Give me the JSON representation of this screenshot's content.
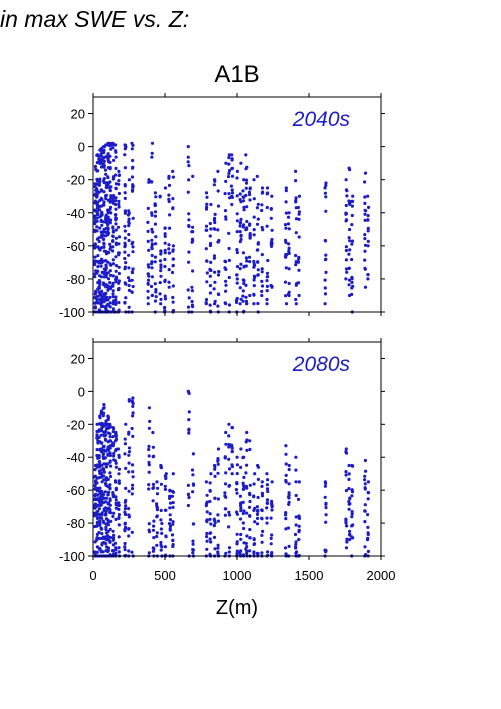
{
  "page": {
    "title": "in max SWE vs. Z:"
  },
  "colors": {
    "points": "#1c1cc8",
    "annotation": "#1c1cc8",
    "axis": "#000000"
  },
  "chart_data": [
    {
      "type": "scatter",
      "title": "A1B",
      "annotation": "2040s",
      "xlim": [
        0,
        2000
      ],
      "ylim": [
        -100,
        30
      ],
      "xticks": [
        0,
        500,
        1000,
        1500,
        2000
      ],
      "yticks": [
        20,
        0,
        -20,
        -40,
        -60,
        -80,
        -100
      ],
      "grid": false,
      "columns": [
        {
          "x": 15,
          "ymin": -100,
          "ymax": -12,
          "n": 40
        },
        {
          "x": 30,
          "ymin": -100,
          "ymax": -5,
          "n": 45
        },
        {
          "x": 45,
          "ymin": -100,
          "ymax": -2,
          "n": 45
        },
        {
          "x": 60,
          "ymin": -100,
          "ymax": -1,
          "n": 45
        },
        {
          "x": 75,
          "ymin": -100,
          "ymax": 0,
          "n": 45
        },
        {
          "x": 90,
          "ymin": -100,
          "ymax": 1,
          "n": 45
        },
        {
          "x": 105,
          "ymin": -100,
          "ymax": 2,
          "n": 45
        },
        {
          "x": 120,
          "ymin": -100,
          "ymax": 2,
          "n": 40
        },
        {
          "x": 140,
          "ymin": -100,
          "ymax": 2,
          "n": 40
        },
        {
          "x": 160,
          "ymin": -100,
          "ymax": 1,
          "n": 35
        },
        {
          "x": 180,
          "ymin": -100,
          "ymax": -15,
          "n": 25
        },
        {
          "x": 225,
          "ymin": -100,
          "ymax": 1,
          "n": 30
        },
        {
          "x": 250,
          "ymin": -100,
          "ymax": -20,
          "n": 18
        },
        {
          "x": 275,
          "ymin": -100,
          "ymax": 2,
          "n": 25
        },
        {
          "x": 385,
          "ymin": -95,
          "ymax": -20,
          "n": 18
        },
        {
          "x": 410,
          "ymin": -90,
          "ymax": 2,
          "n": 22
        },
        {
          "x": 435,
          "ymin": -100,
          "ymax": -28,
          "n": 18
        },
        {
          "x": 470,
          "ymin": -95,
          "ymax": -30,
          "n": 14
        },
        {
          "x": 500,
          "ymin": -100,
          "ymax": -25,
          "n": 18
        },
        {
          "x": 530,
          "ymin": -85,
          "ymax": -18,
          "n": 15
        },
        {
          "x": 555,
          "ymin": -100,
          "ymax": -15,
          "n": 18
        },
        {
          "x": 665,
          "ymin": -100,
          "ymax": 0,
          "n": 16
        },
        {
          "x": 690,
          "ymin": -100,
          "ymax": -18,
          "n": 14
        },
        {
          "x": 790,
          "ymin": -95,
          "ymax": -28,
          "n": 16
        },
        {
          "x": 815,
          "ymin": -100,
          "ymax": -35,
          "n": 16
        },
        {
          "x": 845,
          "ymin": -95,
          "ymax": -20,
          "n": 16
        },
        {
          "x": 870,
          "ymin": -100,
          "ymax": -15,
          "n": 14
        },
        {
          "x": 920,
          "ymin": -95,
          "ymax": -10,
          "n": 15
        },
        {
          "x": 945,
          "ymin": -100,
          "ymax": -5,
          "n": 14
        },
        {
          "x": 965,
          "ymin": -35,
          "ymax": -5,
          "n": 12
        },
        {
          "x": 1000,
          "ymin": -100,
          "ymax": -15,
          "n": 18
        },
        {
          "x": 1025,
          "ymin": -95,
          "ymax": -10,
          "n": 18
        },
        {
          "x": 1045,
          "ymin": -100,
          "ymax": -20,
          "n": 20
        },
        {
          "x": 1065,
          "ymin": -95,
          "ymax": -5,
          "n": 20
        },
        {
          "x": 1090,
          "ymin": -90,
          "ymax": -25,
          "n": 15
        },
        {
          "x": 1120,
          "ymin": -95,
          "ymax": -20,
          "n": 16
        },
        {
          "x": 1145,
          "ymin": -100,
          "ymax": -18,
          "n": 16
        },
        {
          "x": 1175,
          "ymin": -90,
          "ymax": -25,
          "n": 14
        },
        {
          "x": 1210,
          "ymin": -95,
          "ymax": -25,
          "n": 14
        },
        {
          "x": 1240,
          "ymin": -85,
          "ymax": -30,
          "n": 14
        },
        {
          "x": 1340,
          "ymin": -95,
          "ymax": -25,
          "n": 16
        },
        {
          "x": 1360,
          "ymin": -90,
          "ymax": -40,
          "n": 14
        },
        {
          "x": 1410,
          "ymin": -95,
          "ymax": -15,
          "n": 16
        },
        {
          "x": 1430,
          "ymin": -90,
          "ymax": -30,
          "n": 12
        },
        {
          "x": 1615,
          "ymin": -95,
          "ymax": -22,
          "n": 16
        },
        {
          "x": 1760,
          "ymin": -80,
          "ymax": -20,
          "n": 16
        },
        {
          "x": 1780,
          "ymin": -90,
          "ymax": -13,
          "n": 16
        },
        {
          "x": 1800,
          "ymin": -100,
          "ymax": -30,
          "n": 16
        },
        {
          "x": 1890,
          "ymin": -85,
          "ymax": -16,
          "n": 16
        },
        {
          "x": 1910,
          "ymin": -80,
          "ymax": -30,
          "n": 12
        }
      ]
    },
    {
      "type": "scatter",
      "title": "",
      "annotation": "2080s",
      "xlim": [
        0,
        2000
      ],
      "ylim": [
        -100,
        30
      ],
      "xticks": [
        0,
        500,
        1000,
        1500,
        2000
      ],
      "yticks": [
        20,
        0,
        -20,
        -40,
        -60,
        -80,
        -100
      ],
      "grid": false,
      "columns": [
        {
          "x": 15,
          "ymin": -100,
          "ymax": -45,
          "n": 30
        },
        {
          "x": 30,
          "ymin": -100,
          "ymax": -20,
          "n": 40
        },
        {
          "x": 45,
          "ymin": -100,
          "ymax": -15,
          "n": 40
        },
        {
          "x": 60,
          "ymin": -100,
          "ymax": -12,
          "n": 40
        },
        {
          "x": 75,
          "ymin": -100,
          "ymax": -8,
          "n": 40
        },
        {
          "x": 90,
          "ymin": -100,
          "ymax": -18,
          "n": 40
        },
        {
          "x": 105,
          "ymin": -100,
          "ymax": -15,
          "n": 40
        },
        {
          "x": 120,
          "ymin": -100,
          "ymax": -20,
          "n": 35
        },
        {
          "x": 140,
          "ymin": -100,
          "ymax": -22,
          "n": 32
        },
        {
          "x": 160,
          "ymin": -100,
          "ymax": -25,
          "n": 30
        },
        {
          "x": 180,
          "ymin": -100,
          "ymax": -35,
          "n": 20
        },
        {
          "x": 225,
          "ymin": -100,
          "ymax": -20,
          "n": 25
        },
        {
          "x": 250,
          "ymin": -100,
          "ymax": -5,
          "n": 18
        },
        {
          "x": 275,
          "ymin": -100,
          "ymax": -4,
          "n": 18
        },
        {
          "x": 390,
          "ymin": -100,
          "ymax": -10,
          "n": 16
        },
        {
          "x": 420,
          "ymin": -100,
          "ymax": -25,
          "n": 16
        },
        {
          "x": 445,
          "ymin": -100,
          "ymax": -55,
          "n": 14
        },
        {
          "x": 475,
          "ymin": -100,
          "ymax": -45,
          "n": 14
        },
        {
          "x": 505,
          "ymin": -100,
          "ymax": -50,
          "n": 14
        },
        {
          "x": 535,
          "ymin": -100,
          "ymax": -60,
          "n": 14
        },
        {
          "x": 555,
          "ymin": -100,
          "ymax": -50,
          "n": 14
        },
        {
          "x": 665,
          "ymin": -100,
          "ymax": 0,
          "n": 14
        },
        {
          "x": 695,
          "ymin": -100,
          "ymax": -38,
          "n": 14
        },
        {
          "x": 790,
          "ymin": -100,
          "ymax": -55,
          "n": 14
        },
        {
          "x": 815,
          "ymin": -100,
          "ymax": -50,
          "n": 14
        },
        {
          "x": 845,
          "ymin": -100,
          "ymax": -45,
          "n": 14
        },
        {
          "x": 870,
          "ymin": -100,
          "ymax": -35,
          "n": 14
        },
        {
          "x": 920,
          "ymin": -100,
          "ymax": -25,
          "n": 14
        },
        {
          "x": 945,
          "ymin": -100,
          "ymax": -20,
          "n": 14
        },
        {
          "x": 965,
          "ymin": -50,
          "ymax": -22,
          "n": 10
        },
        {
          "x": 1000,
          "ymin": -100,
          "ymax": -40,
          "n": 16
        },
        {
          "x": 1025,
          "ymin": -100,
          "ymax": -35,
          "n": 16
        },
        {
          "x": 1045,
          "ymin": -100,
          "ymax": -40,
          "n": 16
        },
        {
          "x": 1065,
          "ymin": -100,
          "ymax": -25,
          "n": 16
        },
        {
          "x": 1090,
          "ymin": -100,
          "ymax": -30,
          "n": 14
        },
        {
          "x": 1120,
          "ymin": -100,
          "ymax": -50,
          "n": 14
        },
        {
          "x": 1145,
          "ymin": -100,
          "ymax": -45,
          "n": 14
        },
        {
          "x": 1175,
          "ymin": -100,
          "ymax": -55,
          "n": 14
        },
        {
          "x": 1210,
          "ymin": -100,
          "ymax": -50,
          "n": 14
        },
        {
          "x": 1240,
          "ymin": -100,
          "ymax": -55,
          "n": 14
        },
        {
          "x": 1340,
          "ymin": -100,
          "ymax": -33,
          "n": 14
        },
        {
          "x": 1360,
          "ymin": -100,
          "ymax": -45,
          "n": 12
        },
        {
          "x": 1410,
          "ymin": -100,
          "ymax": -40,
          "n": 14
        },
        {
          "x": 1430,
          "ymin": -100,
          "ymax": -55,
          "n": 12
        },
        {
          "x": 1615,
          "ymin": -100,
          "ymax": -55,
          "n": 14
        },
        {
          "x": 1760,
          "ymin": -95,
          "ymax": -35,
          "n": 14
        },
        {
          "x": 1780,
          "ymin": -90,
          "ymax": -45,
          "n": 14
        },
        {
          "x": 1800,
          "ymin": -100,
          "ymax": -45,
          "n": 14
        },
        {
          "x": 1890,
          "ymin": -100,
          "ymax": -42,
          "n": 14
        },
        {
          "x": 1910,
          "ymin": -100,
          "ymax": -55,
          "n": 12
        }
      ]
    }
  ],
  "axes": {
    "xlabel": "Z(m)"
  }
}
